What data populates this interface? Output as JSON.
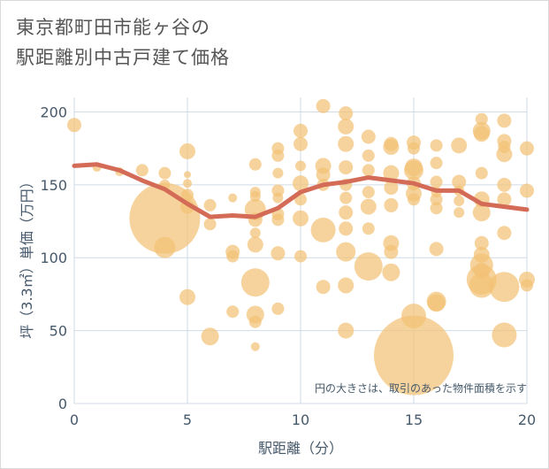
{
  "title_lines": [
    "東京都町田市能ヶ谷の",
    "駅距離別中古戸建て価格"
  ],
  "chart_data": {
    "type": "scatter",
    "xlabel": "駅距離（分）",
    "ylabel": "坪（3.3㎡）単価（万円）",
    "xlim": [
      0,
      20
    ],
    "ylim": [
      0,
      210
    ],
    "xticks": [
      0,
      5,
      10,
      15,
      20
    ],
    "yticks": [
      0,
      50,
      100,
      150,
      200
    ],
    "annotation": "円の大きさは、取引のあった物件面積を示す",
    "colors": {
      "bubble": "#f3c276",
      "line": "#d36b57",
      "grid": "#cfdbe5",
      "tick": "#46596b",
      "plot_bg": "#ffffff"
    },
    "bubbles": [
      {
        "x": 0,
        "y": 191,
        "s": 8
      },
      {
        "x": 1,
        "y": 162,
        "s": 5
      },
      {
        "x": 2,
        "y": 159,
        "s": 5
      },
      {
        "x": 3,
        "y": 160,
        "s": 7
      },
      {
        "x": 4,
        "y": 158,
        "s": 7
      },
      {
        "x": 4,
        "y": 150,
        "s": 6
      },
      {
        "x": 4,
        "y": 127,
        "s": 40
      },
      {
        "x": 4,
        "y": 107,
        "s": 12
      },
      {
        "x": 5,
        "y": 173,
        "s": 9
      },
      {
        "x": 5,
        "y": 157,
        "s": 4
      },
      {
        "x": 5,
        "y": 151,
        "s": 5
      },
      {
        "x": 5,
        "y": 143,
        "s": 7
      },
      {
        "x": 5,
        "y": 135,
        "s": 8
      },
      {
        "x": 5,
        "y": 73,
        "s": 9
      },
      {
        "x": 6,
        "y": 136,
        "s": 7
      },
      {
        "x": 6,
        "y": 123,
        "s": 7
      },
      {
        "x": 6,
        "y": 46,
        "s": 10
      },
      {
        "x": 7,
        "y": 141,
        "s": 5
      },
      {
        "x": 7,
        "y": 104,
        "s": 8
      },
      {
        "x": 7,
        "y": 101,
        "s": 7
      },
      {
        "x": 7,
        "y": 63,
        "s": 7
      },
      {
        "x": 8,
        "y": 164,
        "s": 7
      },
      {
        "x": 8,
        "y": 145,
        "s": 6
      },
      {
        "x": 8,
        "y": 142,
        "s": 6
      },
      {
        "x": 8,
        "y": 133,
        "s": 12
      },
      {
        "x": 8,
        "y": 126,
        "s": 8
      },
      {
        "x": 8,
        "y": 117,
        "s": 6
      },
      {
        "x": 8,
        "y": 109,
        "s": 9
      },
      {
        "x": 8,
        "y": 83,
        "s": 16
      },
      {
        "x": 8,
        "y": 61,
        "s": 10
      },
      {
        "x": 8,
        "y": 56,
        "s": 7
      },
      {
        "x": 8,
        "y": 39,
        "s": 5
      },
      {
        "x": 9,
        "y": 175,
        "s": 7
      },
      {
        "x": 9,
        "y": 170,
        "s": 7
      },
      {
        "x": 9,
        "y": 158,
        "s": 6
      },
      {
        "x": 9,
        "y": 146,
        "s": 7
      },
      {
        "x": 9,
        "y": 141,
        "s": 6
      },
      {
        "x": 9,
        "y": 130,
        "s": 7
      },
      {
        "x": 9,
        "y": 126,
        "s": 7
      },
      {
        "x": 9,
        "y": 103,
        "s": 8
      },
      {
        "x": 9,
        "y": 65,
        "s": 7
      },
      {
        "x": 10,
        "y": 187,
        "s": 8
      },
      {
        "x": 10,
        "y": 178,
        "s": 8
      },
      {
        "x": 10,
        "y": 163,
        "s": 6
      },
      {
        "x": 10,
        "y": 151,
        "s": 9
      },
      {
        "x": 10,
        "y": 140,
        "s": 7
      },
      {
        "x": 10,
        "y": 127,
        "s": 9
      },
      {
        "x": 10,
        "y": 101,
        "s": 7
      },
      {
        "x": 11,
        "y": 204,
        "s": 8
      },
      {
        "x": 11,
        "y": 163,
        "s": 9
      },
      {
        "x": 11,
        "y": 157,
        "s": 8
      },
      {
        "x": 11,
        "y": 150,
        "s": 7
      },
      {
        "x": 11,
        "y": 119,
        "s": 14
      },
      {
        "x": 11,
        "y": 80,
        "s": 8
      },
      {
        "x": 12,
        "y": 199,
        "s": 8
      },
      {
        "x": 12,
        "y": 190,
        "s": 9
      },
      {
        "x": 12,
        "y": 178,
        "s": 9
      },
      {
        "x": 12,
        "y": 162,
        "s": 8
      },
      {
        "x": 12,
        "y": 150,
        "s": 7
      },
      {
        "x": 12,
        "y": 141,
        "s": 7
      },
      {
        "x": 12,
        "y": 131,
        "s": 8
      },
      {
        "x": 12,
        "y": 120,
        "s": 8
      },
      {
        "x": 12,
        "y": 104,
        "s": 11
      },
      {
        "x": 12,
        "y": 81,
        "s": 9
      },
      {
        "x": 12,
        "y": 50,
        "s": 9
      },
      {
        "x": 13,
        "y": 183,
        "s": 8
      },
      {
        "x": 13,
        "y": 170,
        "s": 7
      },
      {
        "x": 13,
        "y": 160,
        "s": 7
      },
      {
        "x": 13,
        "y": 145,
        "s": 7
      },
      {
        "x": 13,
        "y": 135,
        "s": 9
      },
      {
        "x": 13,
        "y": 120,
        "s": 7
      },
      {
        "x": 13,
        "y": 94,
        "s": 16
      },
      {
        "x": 14,
        "y": 178,
        "s": 8
      },
      {
        "x": 14,
        "y": 176,
        "s": 9
      },
      {
        "x": 14,
        "y": 158,
        "s": 9
      },
      {
        "x": 14,
        "y": 148,
        "s": 8
      },
      {
        "x": 14,
        "y": 136,
        "s": 8
      },
      {
        "x": 14,
        "y": 110,
        "s": 9
      },
      {
        "x": 14,
        "y": 104,
        "s": 8
      },
      {
        "x": 14,
        "y": 90,
        "s": 10
      },
      {
        "x": 15,
        "y": 179,
        "s": 8
      },
      {
        "x": 15,
        "y": 175,
        "s": 7
      },
      {
        "x": 15,
        "y": 162,
        "s": 10
      },
      {
        "x": 15,
        "y": 160,
        "s": 11
      },
      {
        "x": 15,
        "y": 151,
        "s": 8
      },
      {
        "x": 15,
        "y": 144,
        "s": 9
      },
      {
        "x": 15,
        "y": 140,
        "s": 7
      },
      {
        "x": 15,
        "y": 60,
        "s": 14
      },
      {
        "x": 15,
        "y": 33,
        "s": 45
      },
      {
        "x": 16,
        "y": 177,
        "s": 7
      },
      {
        "x": 16,
        "y": 165,
        "s": 7
      },
      {
        "x": 16,
        "y": 152,
        "s": 7
      },
      {
        "x": 16,
        "y": 145,
        "s": 6
      },
      {
        "x": 16,
        "y": 140,
        "s": 7
      },
      {
        "x": 16,
        "y": 134,
        "s": 7
      },
      {
        "x": 16,
        "y": 106,
        "s": 8
      },
      {
        "x": 16,
        "y": 70,
        "s": 11
      },
      {
        "x": 16,
        "y": 69,
        "s": 10
      },
      {
        "x": 17,
        "y": 177,
        "s": 9
      },
      {
        "x": 17,
        "y": 152,
        "s": 8
      },
      {
        "x": 17,
        "y": 146,
        "s": 6
      },
      {
        "x": 17,
        "y": 139,
        "s": 6
      },
      {
        "x": 17,
        "y": 131,
        "s": 6
      },
      {
        "x": 18,
        "y": 195,
        "s": 7
      },
      {
        "x": 18,
        "y": 187,
        "s": 10
      },
      {
        "x": 18,
        "y": 185,
        "s": 9
      },
      {
        "x": 18,
        "y": 158,
        "s": 7
      },
      {
        "x": 18,
        "y": 140,
        "s": 9
      },
      {
        "x": 18,
        "y": 131,
        "s": 10
      },
      {
        "x": 18,
        "y": 110,
        "s": 8
      },
      {
        "x": 18,
        "y": 102,
        "s": 9
      },
      {
        "x": 18,
        "y": 95,
        "s": 13
      },
      {
        "x": 18,
        "y": 91,
        "s": 9
      },
      {
        "x": 18,
        "y": 85,
        "s": 17
      },
      {
        "x": 18,
        "y": 81,
        "s": 14
      },
      {
        "x": 19,
        "y": 194,
        "s": 8
      },
      {
        "x": 19,
        "y": 180,
        "s": 8
      },
      {
        "x": 19,
        "y": 176,
        "s": 7
      },
      {
        "x": 19,
        "y": 171,
        "s": 9
      },
      {
        "x": 19,
        "y": 150,
        "s": 8
      },
      {
        "x": 19,
        "y": 140,
        "s": 8
      },
      {
        "x": 19,
        "y": 117,
        "s": 8
      },
      {
        "x": 19,
        "y": 80,
        "s": 17
      },
      {
        "x": 19,
        "y": 47,
        "s": 14
      },
      {
        "x": 20,
        "y": 175,
        "s": 8
      },
      {
        "x": 20,
        "y": 146,
        "s": 8
      },
      {
        "x": 20,
        "y": 85,
        "s": 9
      },
      {
        "x": 20,
        "y": 81,
        "s": 7
      }
    ],
    "trend_line": {
      "x": [
        0,
        1,
        2,
        3,
        4,
        5,
        6,
        7,
        8,
        9,
        10,
        11,
        12,
        13,
        14,
        15,
        16,
        17,
        18,
        19,
        20
      ],
      "y": [
        163,
        164,
        160,
        153,
        147,
        137,
        128,
        129,
        128,
        134,
        145,
        150,
        152,
        155,
        153,
        151,
        146,
        146,
        137,
        135,
        133
      ]
    }
  }
}
